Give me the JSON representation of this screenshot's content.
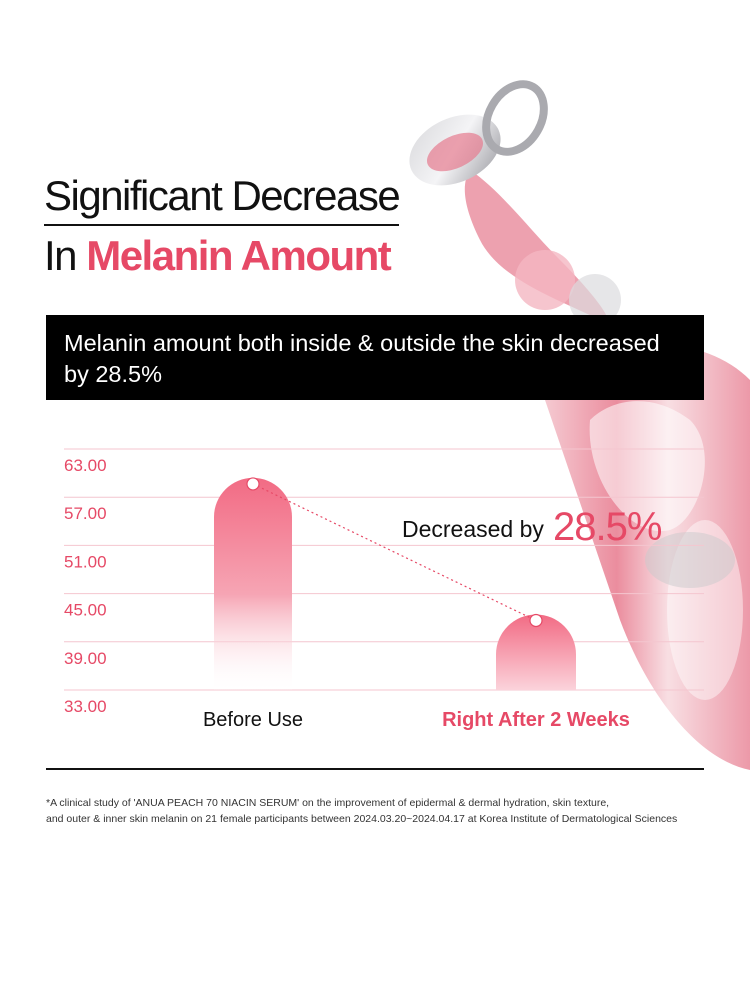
{
  "title": {
    "line1": "Significant Decrease",
    "line2_prefix": "In",
    "line2_accent": "Melanin Amount"
  },
  "banner_text": "Melanin amount both inside & outside the skin decreased by 28.5%",
  "colors": {
    "accent": "#e64966",
    "bar": "#f26b84",
    "grid": "#f4c6cf",
    "tick": "#e64966"
  },
  "chart_data": {
    "type": "bar",
    "categories": [
      "Before Use",
      "Right After 2 Weeks"
    ],
    "values": [
      59.4,
      42.4
    ],
    "yticks": [
      "63.00",
      "57.00",
      "51.00",
      "45.00",
      "39.00",
      "33.00"
    ],
    "ylim": [
      33,
      63
    ],
    "grid": true,
    "connector": "dotted line between bar tops",
    "annotation": {
      "prefix": "Decreased by",
      "value": "28.5%"
    }
  },
  "footnote": {
    "line1": "*A clinical study of 'ANUA PEACH 70 NIACIN SERUM' on the improvement of epidermal & dermal hydration, skin texture,",
    "line2": "and outer & inner skin melanin on 21 female participants between 2024.03.20~2024.04.17 at Korea Institute of Dermatological Sciences"
  }
}
